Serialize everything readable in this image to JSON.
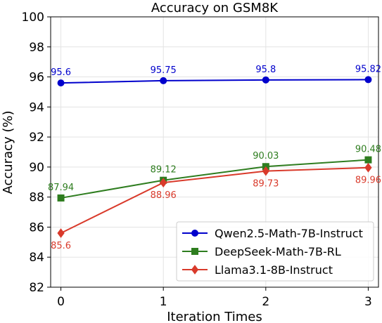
{
  "chart_data": {
    "type": "line",
    "title": "Accuracy on GSM8K",
    "xlabel": "Iteration Times",
    "ylabel": "Accuracy (%)",
    "x": [
      0,
      1,
      2,
      3
    ],
    "xlim": [
      -0.1,
      3.1
    ],
    "ylim": [
      82,
      100
    ],
    "xticks": [
      "0",
      "1",
      "2",
      "3"
    ],
    "yticks": [
      "82",
      "84",
      "86",
      "88",
      "90",
      "92",
      "94",
      "96",
      "98",
      "100"
    ],
    "grid": true,
    "legend_position": "lower-right",
    "series": [
      {
        "name": "Qwen2.5-Math-7B-Instruct",
        "values": [
          95.6,
          95.75,
          95.8,
          95.82
        ],
        "labels": [
          "95.6",
          "95.75",
          "95.8",
          "95.82"
        ],
        "label_position": "above",
        "color": "#0000cc",
        "marker": "circle"
      },
      {
        "name": "DeepSeek-Math-7B-RL",
        "values": [
          87.94,
          89.12,
          90.03,
          90.48
        ],
        "labels": [
          "87.94",
          "89.12",
          "90.03",
          "90.48"
        ],
        "label_position": "above",
        "color": "#2e7d1f",
        "marker": "square"
      },
      {
        "name": "Llama3.1-8B-Instruct",
        "values": [
          85.6,
          88.96,
          89.73,
          89.96
        ],
        "labels": [
          "85.6",
          "88.96",
          "89.73",
          "89.96"
        ],
        "label_position": "below",
        "color": "#d93a2b",
        "marker": "diamond"
      }
    ]
  }
}
